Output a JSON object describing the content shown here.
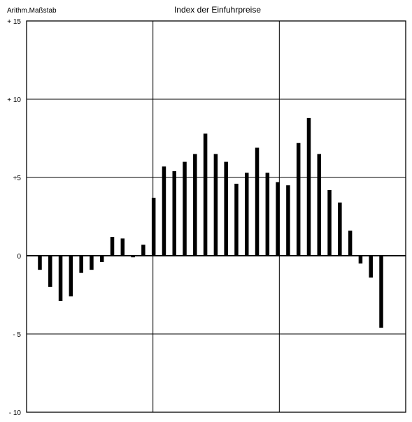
{
  "chart_data": {
    "type": "bar",
    "title": "Index der Einfuhrpreise",
    "scale_label": "Arithm.Maßstab",
    "ylim": [
      -10,
      15
    ],
    "yticks": [
      {
        "value": 15,
        "label": "+ 15"
      },
      {
        "value": 10,
        "label": "+ 10"
      },
      {
        "value": 5,
        "label": "+5"
      },
      {
        "value": 0,
        "label": "0"
      },
      {
        "value": -5,
        "label": "- 5"
      },
      {
        "value": -10,
        "label": "- 10"
      }
    ],
    "gridlines": true,
    "series": [
      {
        "values": [
          -0.9,
          -2.0,
          -2.9,
          -2.6,
          -1.1,
          -0.9,
          -0.4,
          1.2,
          1.1,
          -0.1,
          0.7,
          3.7,
          5.7,
          5.4,
          6.0,
          6.5,
          7.8,
          6.5,
          6.0,
          4.6,
          5.3,
          6.9,
          5.3,
          4.7,
          4.5,
          7.2,
          8.8,
          6.5,
          4.2,
          3.4,
          1.6,
          -0.5,
          -1.4,
          -4.6
        ]
      }
    ]
  }
}
